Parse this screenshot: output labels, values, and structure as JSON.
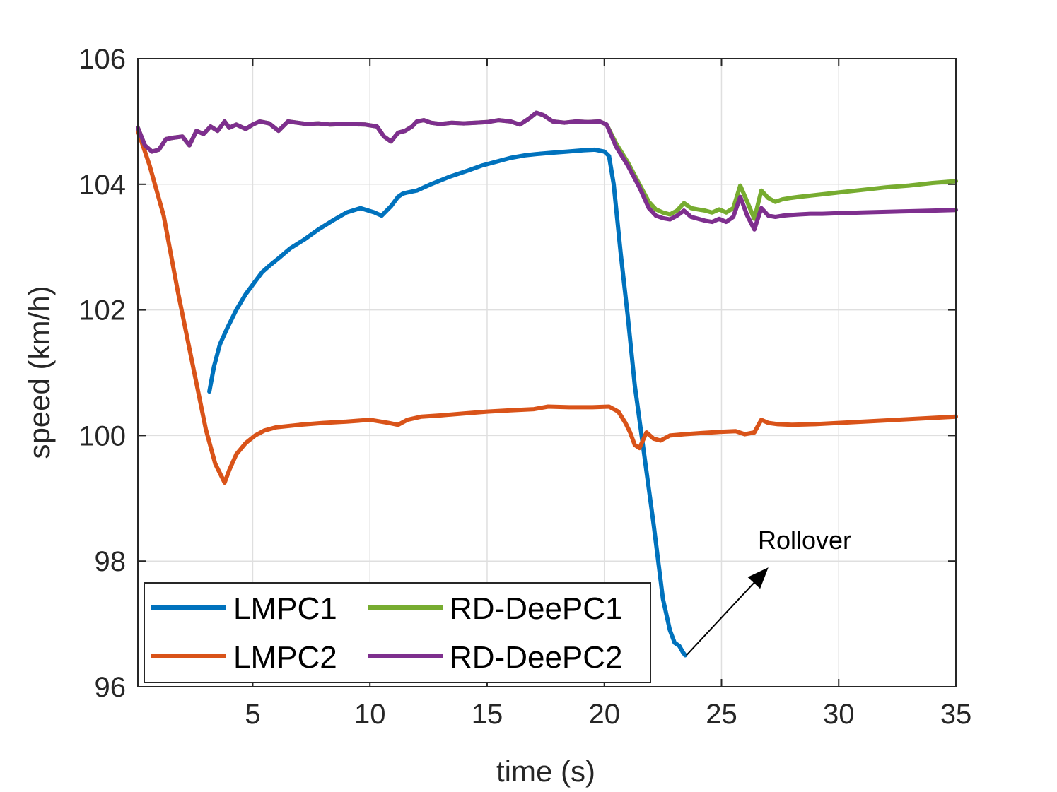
{
  "chart_data": {
    "type": "line",
    "title": "",
    "xlabel": "time (s)",
    "ylabel": "speed (km/h)",
    "xlim": [
      0.1,
      35
    ],
    "ylim": [
      96,
      106
    ],
    "xticks": [
      5,
      10,
      15,
      20,
      25,
      30,
      35
    ],
    "yticks": [
      96,
      98,
      100,
      102,
      104,
      106
    ],
    "grid": true,
    "legend_position": "bottom-left",
    "series": [
      {
        "name": "LMPC1",
        "color": "#0072BD",
        "x": [
          3.15,
          3.35,
          3.6,
          3.9,
          4.3,
          4.7,
          5.1,
          5.4,
          5.7,
          6.1,
          6.6,
          7.2,
          7.8,
          8.4,
          9.0,
          9.6,
          10.2,
          10.5,
          10.9,
          11.2,
          11.4,
          11.6,
          12.0,
          12.6,
          13.4,
          14.2,
          14.8,
          15.4,
          16.0,
          16.6,
          17.1,
          17.7,
          18.4,
          19.1,
          19.6,
          20.0,
          20.2,
          20.4,
          20.7,
          21.0,
          21.3,
          21.7,
          22.1,
          22.5,
          22.8,
          23.0,
          23.2,
          23.35,
          23.45
        ],
        "y": [
          100.7,
          101.1,
          101.45,
          101.7,
          102.0,
          102.25,
          102.45,
          102.6,
          102.7,
          102.82,
          102.98,
          103.12,
          103.28,
          103.42,
          103.55,
          103.62,
          103.55,
          103.5,
          103.65,
          103.8,
          103.85,
          103.87,
          103.9,
          104.0,
          104.12,
          104.22,
          104.3,
          104.36,
          104.42,
          104.46,
          104.48,
          104.5,
          104.52,
          104.54,
          104.55,
          104.52,
          104.45,
          104.0,
          102.9,
          101.9,
          100.8,
          99.7,
          98.6,
          97.4,
          96.9,
          96.7,
          96.65,
          96.55,
          96.5
        ]
      },
      {
        "name": "LMPC2",
        "color": "#D95319",
        "x": [
          0.1,
          0.6,
          1.2,
          1.8,
          2.4,
          3.0,
          3.4,
          3.8,
          4.0,
          4.3,
          4.7,
          5.1,
          5.5,
          6.0,
          7.0,
          8.0,
          9.0,
          10.0,
          10.8,
          11.2,
          11.6,
          12.2,
          13.0,
          14.0,
          15.0,
          16.0,
          17.0,
          17.6,
          18.5,
          19.5,
          20.2,
          20.6,
          20.9,
          21.1,
          21.3,
          21.5,
          21.8,
          22.1,
          22.4,
          22.8,
          23.4,
          24.2,
          25.0,
          25.6,
          26.0,
          26.4,
          26.7,
          27.0,
          27.4,
          28.0,
          29.0,
          30.0,
          32.0,
          34.0,
          35.0
        ],
        "y": [
          104.85,
          104.3,
          103.5,
          102.3,
          101.2,
          100.1,
          99.55,
          99.25,
          99.45,
          99.7,
          99.88,
          100.0,
          100.08,
          100.13,
          100.17,
          100.2,
          100.22,
          100.25,
          100.2,
          100.17,
          100.25,
          100.3,
          100.32,
          100.35,
          100.38,
          100.4,
          100.42,
          100.46,
          100.45,
          100.45,
          100.46,
          100.38,
          100.2,
          100.05,
          99.85,
          99.8,
          100.05,
          99.95,
          99.92,
          100.0,
          100.02,
          100.04,
          100.06,
          100.07,
          100.02,
          100.05,
          100.25,
          100.2,
          100.18,
          100.17,
          100.18,
          100.2,
          100.24,
          100.28,
          100.3
        ]
      },
      {
        "name": "RD-DeePC1",
        "color": "#77AC30",
        "x": [
          0.1,
          0.4,
          0.7,
          1.0,
          1.3,
          1.6,
          2.0,
          2.3,
          2.6,
          2.9,
          3.2,
          3.5,
          3.8,
          4.0,
          4.3,
          4.7,
          5.0,
          5.3,
          5.7,
          6.1,
          6.5,
          6.9,
          7.3,
          7.8,
          8.3,
          9.0,
          9.8,
          10.3,
          10.6,
          10.9,
          11.2,
          11.5,
          11.8,
          12.0,
          12.3,
          12.6,
          13.0,
          13.5,
          14.0,
          14.5,
          15.0,
          15.5,
          16.0,
          16.4,
          16.8,
          17.1,
          17.4,
          17.8,
          18.3,
          18.8,
          19.3,
          19.8,
          20.1,
          20.5,
          21.0,
          21.5,
          21.9,
          22.2,
          22.5,
          22.8,
          23.1,
          23.4,
          23.7,
          24.0,
          24.3,
          24.6,
          24.9,
          25.2,
          25.5,
          25.8,
          26.1,
          26.4,
          26.7,
          27.0,
          27.3,
          27.6,
          27.9,
          28.3,
          28.8,
          29.3,
          30.0,
          31.0,
          32.0,
          33.0,
          34.0,
          35.0
        ],
        "y": [
          104.9,
          104.62,
          104.52,
          104.55,
          104.72,
          104.74,
          104.76,
          104.62,
          104.85,
          104.8,
          104.92,
          104.85,
          105.0,
          104.9,
          104.95,
          104.88,
          104.95,
          105.0,
          104.97,
          104.85,
          105.0,
          104.98,
          104.96,
          104.97,
          104.95,
          104.96,
          104.95,
          104.92,
          104.76,
          104.68,
          104.82,
          104.85,
          104.92,
          105.0,
          105.02,
          104.98,
          104.96,
          104.98,
          104.97,
          104.98,
          104.99,
          105.02,
          105.0,
          104.95,
          105.05,
          105.14,
          105.1,
          105.0,
          104.98,
          105.0,
          104.99,
          105.0,
          104.95,
          104.65,
          104.35,
          104.0,
          103.72,
          103.6,
          103.55,
          103.52,
          103.58,
          103.7,
          103.62,
          103.6,
          103.58,
          103.55,
          103.6,
          103.55,
          103.62,
          103.98,
          103.72,
          103.45,
          103.9,
          103.78,
          103.72,
          103.76,
          103.78,
          103.8,
          103.82,
          103.84,
          103.87,
          103.91,
          103.95,
          103.98,
          104.02,
          104.05
        ]
      },
      {
        "name": "RD-DeePC2",
        "color": "#7E2F8E",
        "x": [
          0.1,
          0.4,
          0.7,
          1.0,
          1.3,
          1.6,
          2.0,
          2.3,
          2.6,
          2.9,
          3.2,
          3.5,
          3.8,
          4.0,
          4.3,
          4.7,
          5.0,
          5.3,
          5.7,
          6.1,
          6.5,
          6.9,
          7.3,
          7.8,
          8.3,
          9.0,
          9.8,
          10.3,
          10.6,
          10.9,
          11.2,
          11.5,
          11.8,
          12.0,
          12.3,
          12.6,
          13.0,
          13.5,
          14.0,
          14.5,
          15.0,
          15.5,
          16.0,
          16.4,
          16.8,
          17.1,
          17.4,
          17.8,
          18.3,
          18.8,
          19.3,
          19.8,
          20.1,
          20.5,
          21.0,
          21.5,
          21.9,
          22.2,
          22.5,
          22.8,
          23.1,
          23.4,
          23.7,
          24.0,
          24.3,
          24.6,
          24.9,
          25.2,
          25.5,
          25.8,
          26.1,
          26.4,
          26.7,
          27.0,
          27.3,
          27.6,
          27.9,
          28.3,
          28.8,
          29.3,
          30.0,
          31.0,
          32.0,
          33.0,
          34.0,
          35.0
        ],
        "y": [
          104.9,
          104.62,
          104.52,
          104.55,
          104.72,
          104.74,
          104.76,
          104.62,
          104.85,
          104.8,
          104.92,
          104.85,
          105.0,
          104.9,
          104.95,
          104.88,
          104.95,
          105.0,
          104.97,
          104.85,
          105.0,
          104.98,
          104.96,
          104.97,
          104.95,
          104.96,
          104.95,
          104.92,
          104.76,
          104.68,
          104.82,
          104.85,
          104.92,
          105.0,
          105.02,
          104.98,
          104.96,
          104.98,
          104.97,
          104.98,
          104.99,
          105.02,
          105.0,
          104.95,
          105.05,
          105.14,
          105.1,
          105.0,
          104.98,
          105.0,
          104.99,
          105.0,
          104.95,
          104.6,
          104.3,
          103.95,
          103.62,
          103.5,
          103.46,
          103.44,
          103.5,
          103.58,
          103.48,
          103.45,
          103.42,
          103.4,
          103.45,
          103.4,
          103.48,
          103.8,
          103.5,
          103.28,
          103.62,
          103.5,
          103.48,
          103.5,
          103.51,
          103.52,
          103.53,
          103.53,
          103.54,
          103.55,
          103.56,
          103.57,
          103.58,
          103.59
        ]
      }
    ],
    "annotations": [
      {
        "text": "Rollover",
        "arrow_from": [
          23.5,
          96.5
        ],
        "arrow_to": [
          27.0,
          97.9
        ]
      }
    ]
  }
}
